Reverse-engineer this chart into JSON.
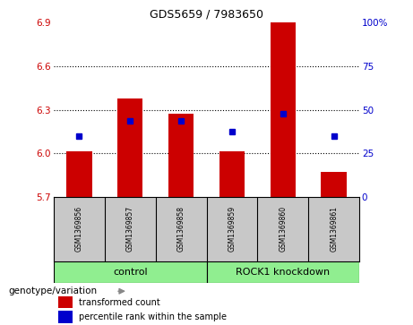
{
  "title": "GDS5659 / 7983650",
  "samples": [
    "GSM1369856",
    "GSM1369857",
    "GSM1369858",
    "GSM1369859",
    "GSM1369860",
    "GSM1369861"
  ],
  "red_values": [
    6.01,
    6.38,
    6.27,
    6.01,
    6.9,
    5.87
  ],
  "blue_values": [
    6.12,
    6.22,
    6.22,
    6.15,
    6.27,
    6.12
  ],
  "ymin": 5.7,
  "ymax": 6.9,
  "yticks": [
    5.7,
    6.0,
    6.3,
    6.6,
    6.9
  ],
  "y2min": 0,
  "y2max": 100,
  "y2ticks": [
    0,
    25,
    50,
    75,
    100
  ],
  "left_color": "#cc0000",
  "right_color": "#0000cc",
  "bar_color": "#cc0000",
  "dot_color": "#0000cc",
  "bg_color": "#ffffff",
  "plot_bg": "#ffffff",
  "grid_color": "#000000",
  "sample_bg": "#c8c8c8",
  "group_bg": "#90EE90",
  "bar_width": 0.5,
  "legend_red": "transformed count",
  "legend_blue": "percentile rank within the sample",
  "genotype_label": "genotype/variation"
}
